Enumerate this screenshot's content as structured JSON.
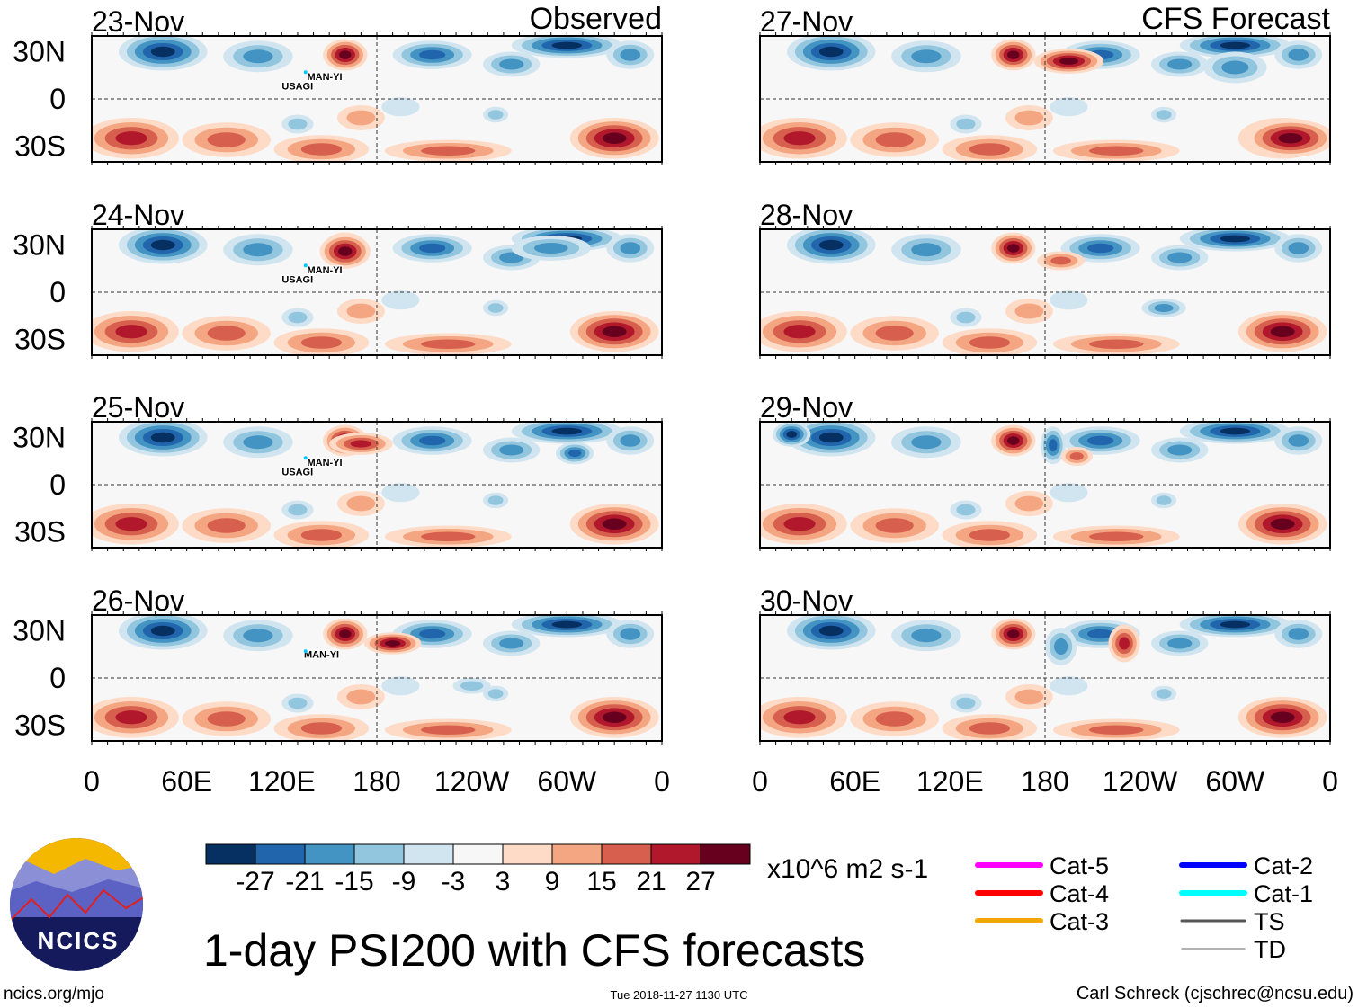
{
  "chart_data": {
    "type": "heatmap",
    "title": "1-day PSI200 with CFS forecasts",
    "units": "x10^6 m2 s-1",
    "columns": [
      {
        "label": "Observed",
        "panels": [
          "23-Nov",
          "24-Nov",
          "25-Nov",
          "26-Nov"
        ]
      },
      {
        "label": "CFS Forecast",
        "panels": [
          "27-Nov",
          "28-Nov",
          "29-Nov",
          "30-Nov"
        ]
      }
    ],
    "y_ticks": [
      "30N",
      "0",
      "30S"
    ],
    "x_ticks": [
      "0",
      "60E",
      "120E",
      "180",
      "120W",
      "60W",
      "0"
    ],
    "colorbar": {
      "levels": [
        "-27",
        "-21",
        "-15",
        "-9",
        "-3",
        "3",
        "9",
        "15",
        "21",
        "27"
      ],
      "colors": [
        "#053061",
        "#2166ac",
        "#4393c3",
        "#92c5de",
        "#d1e5f0",
        "#f7f7f7",
        "#fddbc7",
        "#f4a582",
        "#d6604d",
        "#b2182b",
        "#67001f"
      ]
    },
    "storm_labels": [
      {
        "panel": "23-Nov",
        "names": [
          "USAGI",
          "MAN-YI"
        ]
      },
      {
        "panel": "24-Nov",
        "names": [
          "USAGI",
          "MAN-YI"
        ]
      },
      {
        "panel": "25-Nov",
        "names": [
          "USAGI",
          "MAN-YI"
        ]
      },
      {
        "panel": "26-Nov",
        "names": [
          "MAN-YI"
        ]
      }
    ]
  },
  "legend": [
    {
      "label": "Cat-5",
      "color": "#ff00ff"
    },
    {
      "label": "Cat-4",
      "color": "#ff0000"
    },
    {
      "label": "Cat-3",
      "color": "#f0a800"
    },
    {
      "label": "Cat-2",
      "color": "#0000ff"
    },
    {
      "label": "Cat-1",
      "color": "#00ffff"
    },
    {
      "label": "TS",
      "color": "#555555"
    },
    {
      "label": "TD",
      "color": "#999999"
    }
  ],
  "footer": {
    "url": "ncics.org/mjo",
    "timestamp": "Tue 2018-11-27 1130 UTC",
    "credit": "Carl Schreck (cjschrec@ncsu.edu)",
    "logo_text": "NCICS"
  }
}
